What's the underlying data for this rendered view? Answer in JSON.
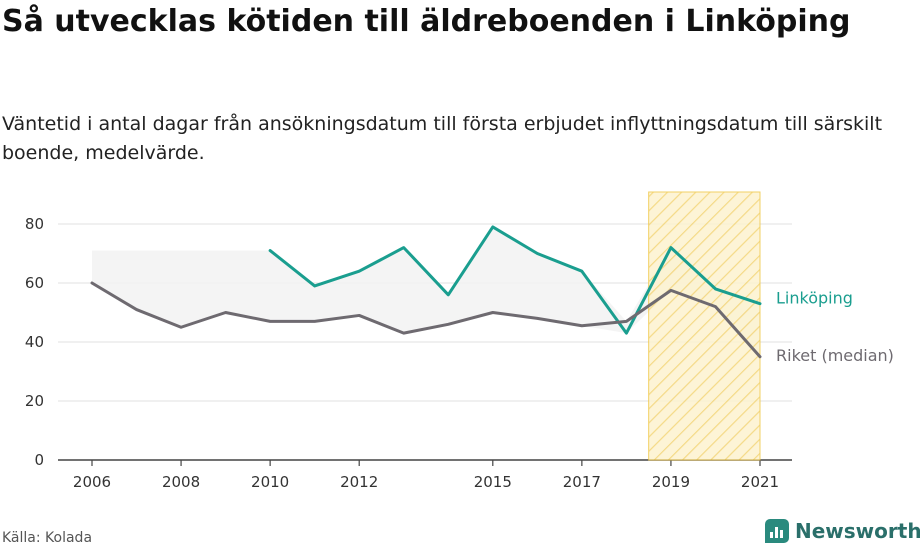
{
  "title": "Så utvecklas kötiden till äldreboenden i Linköping",
  "subtitle": "Väntetid i antal dagar från ansökningsdatum till första erbjudet inflyttningsdatum till särskilt boende, medelvärde.",
  "source": "Källa: Kolada",
  "brand": "Newsworthy",
  "chart_data": {
    "type": "line",
    "x_ticks": [
      "2006",
      "2008",
      "2010",
      "2012",
      "2015",
      "2017",
      "2019",
      "2021"
    ],
    "y_ticks": [
      "0",
      "20",
      "40",
      "60",
      "80"
    ],
    "ylim": [
      0,
      80
    ],
    "xlim": [
      2006,
      2021
    ],
    "highlight_range": [
      2018.5,
      2021
    ],
    "series": [
      {
        "name": "Linköping",
        "color": "#1a9e8f",
        "x": [
          2010,
          2011,
          2012,
          2013,
          2014,
          2015,
          2016,
          2017,
          2018,
          2019,
          2020,
          2021
        ],
        "values": [
          71,
          59,
          64,
          72,
          56,
          79,
          70,
          64,
          43,
          72,
          58,
          53
        ]
      },
      {
        "name": "Riket (median)",
        "color": "#6e6a70",
        "x": [
          2006,
          2007,
          2008,
          2009,
          2010,
          2011,
          2012,
          2013,
          2014,
          2015,
          2016,
          2017,
          2018,
          2019,
          2020,
          2021
        ],
        "values": [
          60,
          51,
          45,
          50,
          47,
          47,
          49,
          43,
          46,
          50,
          48,
          45.5,
          47,
          57.5,
          52,
          35
        ]
      }
    ],
    "colors": {
      "highlight_fill": "#fdf3cf",
      "highlight_stroke": "#f0c84a",
      "range_band": "#efefef"
    }
  }
}
